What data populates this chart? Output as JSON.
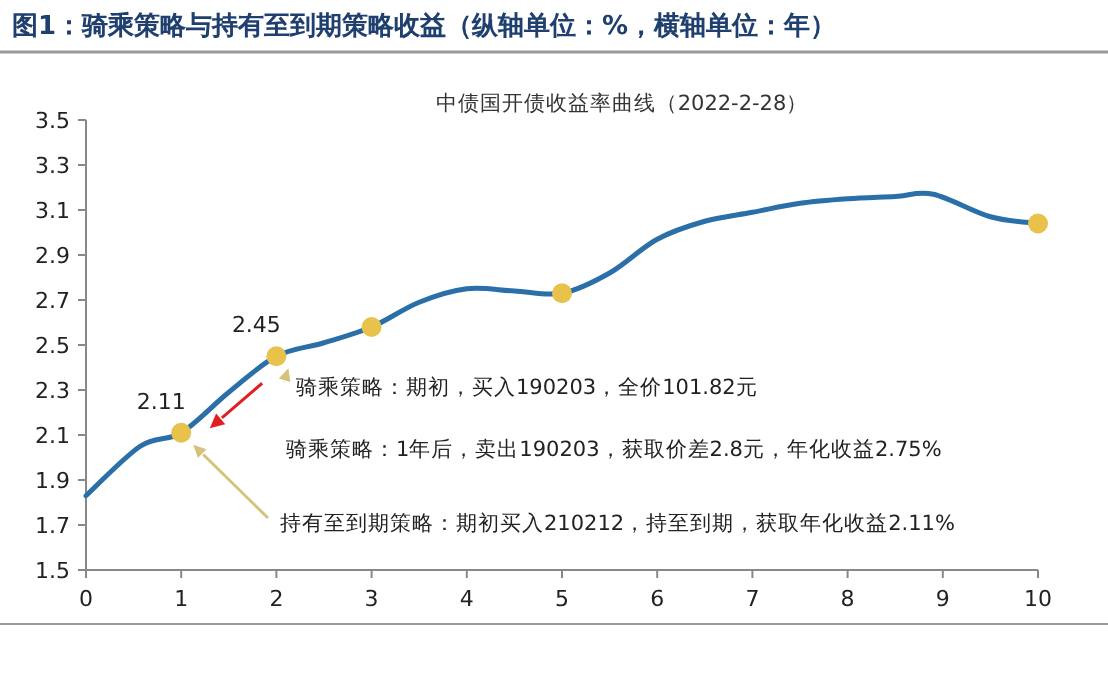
{
  "chart_data": {
    "type": "line",
    "title": "图1：骑乘策略与持有至到期策略收益（纵轴单位：%，横轴单位：年）",
    "subtitle": "中债国开债收益率曲线（2022-2-28）",
    "xlim": [
      0,
      10
    ],
    "xticks": [
      0,
      1,
      2,
      3,
      4,
      5,
      6,
      7,
      8,
      9,
      10
    ],
    "ylim": [
      1.5,
      3.5
    ],
    "yticks": [
      1.5,
      1.7,
      1.9,
      2.1,
      2.3,
      2.5,
      2.7,
      2.9,
      3.1,
      3.3,
      3.5
    ],
    "series": [
      {
        "type": "line",
        "color": "#2a6fa8",
        "x": [
          0,
          0.57,
          1,
          1.5,
          2,
          2.5,
          3,
          3.5,
          4,
          4.5,
          5,
          5.5,
          6,
          6.5,
          7,
          7.5,
          8,
          8.5,
          8.9,
          9.5,
          10
        ],
        "values": [
          1.83,
          2.05,
          2.11,
          2.29,
          2.45,
          2.51,
          2.58,
          2.69,
          2.75,
          2.74,
          2.73,
          2.82,
          2.97,
          3.05,
          3.09,
          3.13,
          3.15,
          3.16,
          3.17,
          3.07,
          3.04
        ]
      },
      {
        "type": "scatter",
        "marker": "circle",
        "color": "#e8c24a",
        "x": [
          1,
          2,
          3,
          5,
          10
        ],
        "values": [
          2.11,
          2.45,
          2.58,
          2.73,
          3.04
        ],
        "value_labels": [
          "2.11",
          "2.45",
          null,
          null,
          null
        ]
      }
    ],
    "annotations": [
      "骑乘策略：期初，买入190203，全价101.82元",
      "骑乘策略：1年后，卖出190203，获取价差2.8元，年化收益2.75%",
      "持有至到期策略：期初买入210212，持至到期，获取年化收益2.11%"
    ]
  }
}
